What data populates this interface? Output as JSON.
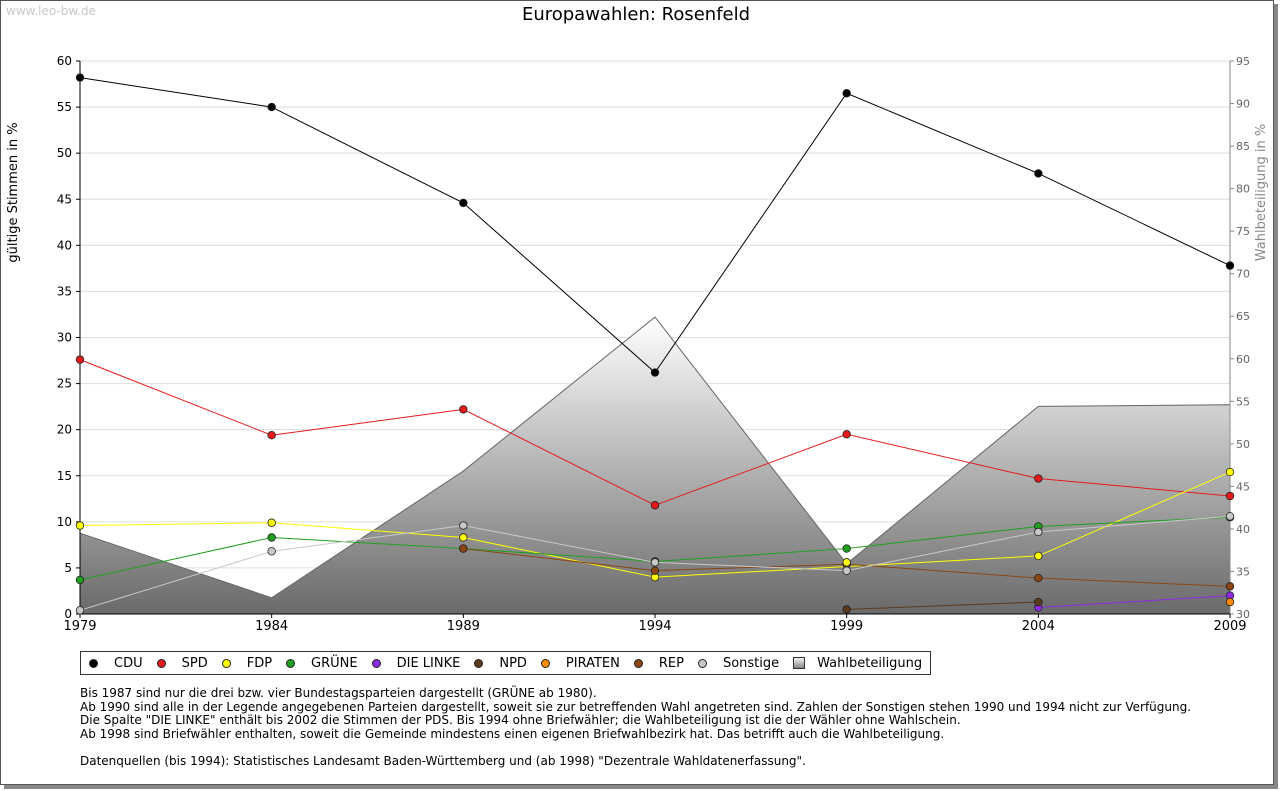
{
  "watermark": "www.leo-bw.de",
  "title": "Europawahlen: Rosenfeld",
  "notes": [
    "Bis 1987 sind nur die drei bzw. vier Bundestagsparteien dargestellt (GRÜNE ab 1980).",
    "Ab 1990 sind alle in der Legende angegebenen Parteien dargestellt, soweit sie zur betreffenden Wahl angetreten sind. Zahlen der Sonstigen stehen 1990 und 1994 nicht zur Verfügung.",
    "Die Spalte \"DIE LINKE\" enthält bis 2002 die Stimmen der PDS. Bis 1994 ohne Briefwähler; die Wahlbeteiligung ist die der Wähler ohne Wahlschein.",
    "Ab 1998 sind Briefwähler enthalten, soweit die Gemeinde mindestens einen eigenen Briefwahlbezirk hat. Das betrifft auch die Wahlbeteiligung."
  ],
  "sources": "Datenquellen (bis 1994): Statistisches Landesamt Baden-Württemberg und (ab 1998) \"Dezentrale Wahldatenerfassung\".",
  "chart_data": {
    "type": "line",
    "title": "Europawahlen: Rosenfeld",
    "ylabel": "gültige Stimmen in %",
    "y2label": "Wahlbeteiligung in %",
    "x": [
      1979,
      1984,
      1989,
      1994,
      1999,
      2004,
      2009
    ],
    "ylim": [
      0,
      60
    ],
    "y2lim": [
      30,
      95
    ],
    "yticks": [
      0,
      5,
      10,
      15,
      20,
      25,
      30,
      35,
      40,
      45,
      50,
      55,
      60
    ],
    "y2ticks": [
      30,
      35,
      40,
      45,
      50,
      55,
      60,
      65,
      70,
      75,
      80,
      85,
      90,
      95
    ],
    "grid": true,
    "legend_position": "bottom",
    "series": [
      {
        "name": "CDU",
        "color": "#000000",
        "values": [
          58.2,
          55.0,
          44.6,
          26.2,
          56.5,
          47.8,
          37.8
        ]
      },
      {
        "name": "SPD",
        "color": "#e41a1c",
        "values": [
          27.6,
          19.4,
          22.2,
          11.8,
          19.5,
          14.7,
          12.8
        ]
      },
      {
        "name": "FDP",
        "color": "#ffff00",
        "values": [
          9.6,
          9.9,
          8.3,
          4.0,
          null,
          6.3,
          15.4
        ]
      },
      {
        "name": "GRÜNE",
        "color": "#1ea01e",
        "values": [
          3.7,
          8.3,
          7.1,
          5.7,
          7.1,
          9.5,
          10.5
        ]
      },
      {
        "name": "DIE LINKE",
        "color": "#8a2be2",
        "values": [
          null,
          null,
          null,
          null,
          null,
          0.7,
          2.0
        ]
      },
      {
        "name": "NPD",
        "color": "#5c3a1e",
        "values": [
          null,
          null,
          null,
          null,
          0.5,
          1.3,
          null
        ]
      },
      {
        "name": "PIRATEN",
        "color": "#ff8c00",
        "values": [
          null,
          null,
          null,
          null,
          null,
          null,
          1.3
        ]
      },
      {
        "name": "REP",
        "color": "#8b4513",
        "values": [
          null,
          null,
          7.1,
          4.7,
          5.4,
          3.9,
          3.0
        ]
      },
      {
        "name": "Sonstige",
        "color": "#c8c8c8",
        "values": [
          0.4,
          6.8,
          9.6,
          5.6,
          4.7,
          8.9,
          10.6
        ]
      }
    ],
    "extra_points": [
      {
        "series": "FDP",
        "x": 1999,
        "value": 5.6
      }
    ],
    "area": {
      "name": "Wahlbeteiligung",
      "axis": "right",
      "values": [
        39.5,
        31.9,
        46.8,
        64.9,
        35.9,
        54.4,
        54.6
      ]
    }
  }
}
